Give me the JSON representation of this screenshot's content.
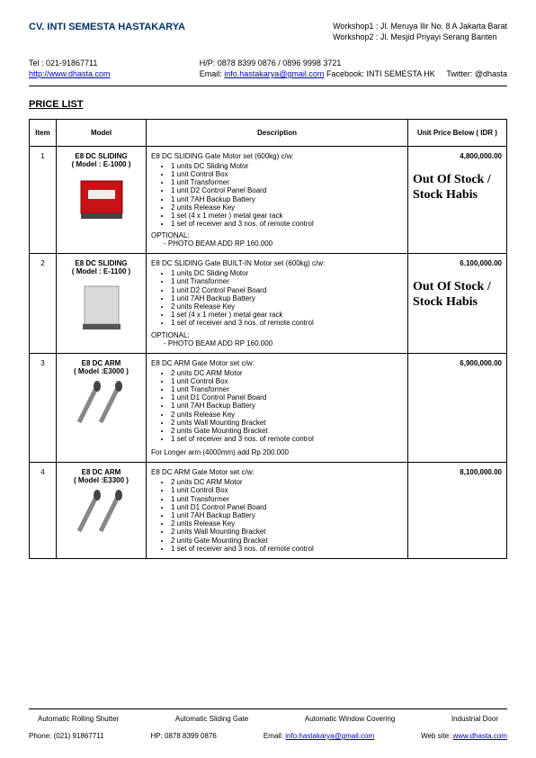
{
  "header": {
    "company": "CV. INTI SEMESTA HASTAKARYA",
    "workshop1": "Workshop1 :  Jl. Meruya Ilir No. 8 A Jakarta Barat",
    "workshop2": "Workshop2  : Jl. Mesjid Priyayi Serang Banten",
    "tel": "Tel : 021-91867711",
    "website": "http://www.dhasta.com",
    "hp": "H/P: 0878 8399 0876 / 0896 9998 3721",
    "email_label": "Email: ",
    "email": "info.hastakarya@gmail.com",
    "fb_label": " Facebook: INTI SEMESTA HK",
    "twitter": "Twitter:  @dhasta"
  },
  "price_list_title": "PRICE LIST",
  "columns": {
    "item": "Item",
    "model": "Model",
    "desc": "Description",
    "price": "Unit Price Below ( IDR )"
  },
  "rows": [
    {
      "item": "1",
      "model_name": "E8 DC SLIDING",
      "model_num": "( Model : E-1000 )",
      "img": "red",
      "desc_head": "E8 DC SLIDING Gate Motor set (600kg) c/w:",
      "bullets": [
        "1 units DC Sliding Motor",
        "1 unit Control Box",
        "1 unit Transformer",
        "1 unit D2 Control Panel Board",
        "1 unit 7AH Backup Battery",
        "2 units Release Key",
        "1 set (4 x 1 meter ) metal gear  rack",
        "1 set of receiver and 3 nos. of remote control"
      ],
      "optional_label": "OPTIONAL:",
      "optional": "-     PHOTO BEAM ADD RP 160.000",
      "price": "4,800,000.00",
      "oos": "Out Of Stock / Stock Habis"
    },
    {
      "item": "2",
      "model_name": "E8 DC SLIDING",
      "model_num": "( Model : E-1100 )",
      "img": "grey",
      "desc_head": "E8 DC SLIDING Gate BUILT-IN Motor set (600kg) c/w:",
      "bullets": [
        "1 units DC Sliding Motor",
        "1 unit Transformer",
        "1 unit D2 Control Panel Board",
        "1 unit 7AH Backup Battery",
        "2 units Release Key",
        "1 set (4 x 1 meter ) metal gear  rack",
        "1 set of receiver and 3 nos. of remote control"
      ],
      "optional_label": "OPTIONAL:",
      "optional": "-     PHOTO BEAM ADD RP 160.000",
      "price": "6.100,000.00",
      "oos": "Out Of Stock / Stock Habis"
    },
    {
      "item": "3",
      "model_name": "E8 DC ARM",
      "model_num": "( Model :E3000 )",
      "img": "arm",
      "desc_head": "E8 DC ARM Gate Motor set c/w:",
      "bullets": [
        "2 units DC ARM Motor",
        "1 unit Control Box",
        "1 unit Transformer",
        "1 unit D1 Control Panel Board",
        "1 unit 7AH Backup Battery",
        "2 units Release Key",
        "2 units Wall Mounting Bracket",
        "2 units Gate Mounting Bracket",
        "1 set of receiver and 3 nos. of remote control"
      ],
      "extra": "For Longer arm (4000mm) add  Rp 200.000",
      "price": "6,900,000.00"
    },
    {
      "item": "4",
      "model_name": "E8 DC ARM",
      "model_num": "( Model :E3300 )",
      "img": "arm",
      "desc_head": "E8 DC ARM Gate Motor set c/w:",
      "bullets": [
        "2 units DC ARM Motor",
        "1 unit Control Box",
        "1 unit Transformer",
        "1 unit D1 Control Panel Board",
        "1 unit 7AH Backup Battery",
        "2 units Release Key",
        "2 units Wall Mounting Bracket",
        "2 units Gate Mounting Bracket",
        "1 set of receiver and 3 nos. of remote control"
      ],
      "price": "8,100,000.00"
    }
  ],
  "footer": {
    "cats": [
      "Automatic Rolling Shutter",
      "Automatic Sliding Gate",
      "Automatic Window Covering",
      "Industrial Door"
    ],
    "phone": "Phone: (021) 91867711",
    "hp": "HP: 0878 8399 0876",
    "email_label": "Email: ",
    "email": "info.hastakarya@gmail.com",
    "web_label": "Web site: ",
    "web": "www.dhasta.com"
  }
}
